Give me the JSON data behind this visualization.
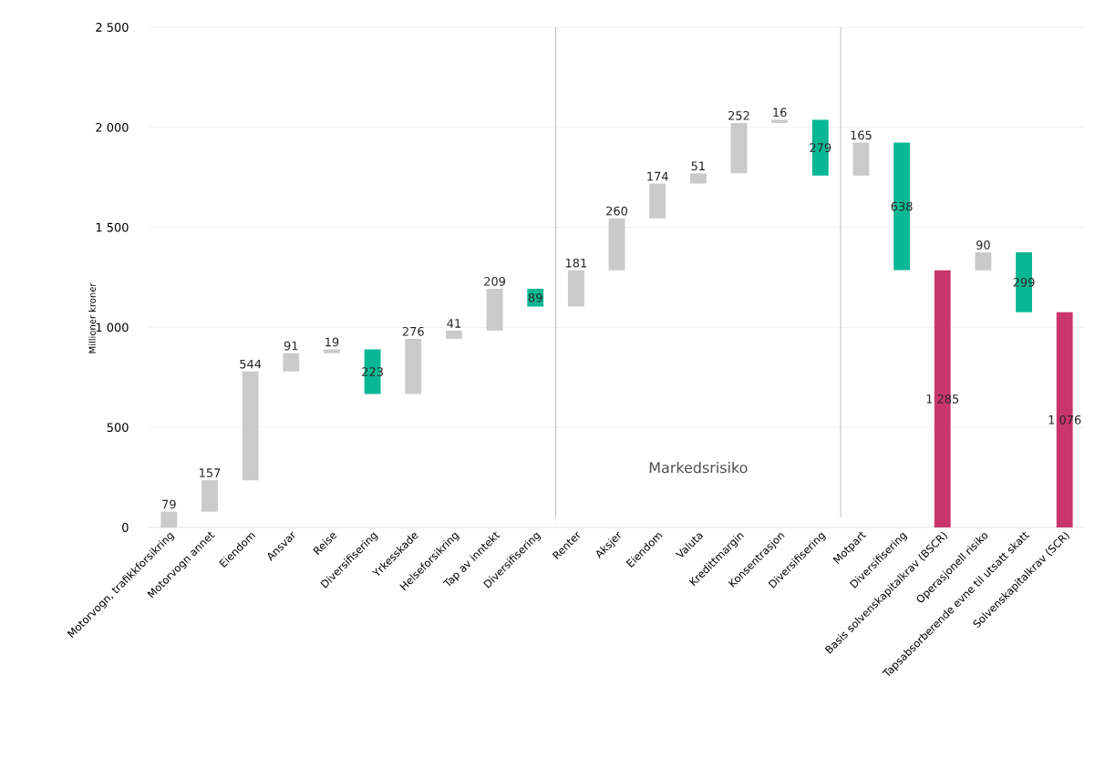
{
  "chart_data": {
    "type": "bar",
    "ylabel": "Millioner kroner",
    "categories": [
      "Motorvogn, trafikkforsikring",
      "Motorvogn annet",
      "Eiendom",
      "Ansvar",
      "Reise",
      "Diversifisering",
      "Yrkesskade",
      "Helseforsikring",
      "Tap av inntekt",
      "Diversifisering",
      "Renter",
      "Aksjer",
      "Eiendom",
      "Valuta",
      "Kredittmargin",
      "Konsentrasjon",
      "Diversifisering",
      "Motpart",
      "Diversifisering",
      "Basis solvenskapitalkrav (BSCR)",
      "Operasjonell risiko",
      "Tapsabsorberende evne til utsatt skatt",
      "Solvenskapitalkrav (SCR)"
    ],
    "values": [
      79,
      157,
      544,
      91,
      19,
      223,
      276,
      41,
      209,
      89,
      181,
      260,
      174,
      51,
      252,
      16,
      279,
      165,
      638,
      1285,
      90,
      299,
      1076
    ],
    "base": [
      0,
      79,
      236,
      780,
      871,
      667,
      667,
      943,
      984,
      1104,
      1104,
      1285,
      1545,
      1719,
      1770,
      2022,
      1759,
      1759,
      1286,
      0,
      1285,
      1076,
      0
    ],
    "colors": [
      "#c9cac9",
      "#c9cac9",
      "#c9cac9",
      "#c9cac9",
      "#c9cac9",
      "#0ab795",
      "#c9cac9",
      "#c9cac9",
      "#c9cac9",
      "#0ab795",
      "#c9cac9",
      "#c9cac9",
      "#c9cac9",
      "#c9cac9",
      "#c9cac9",
      "#c9cac9",
      "#0ab795",
      "#c9cac9",
      "#0ab795",
      "#c8366b",
      "#c9cac9",
      "#0ab795",
      "#c8366b"
    ],
    "value_labels": [
      "79",
      "157",
      "544",
      "91",
      "19",
      "223",
      "276",
      "41",
      "209",
      "89",
      "181",
      "260",
      "174",
      "51",
      "252",
      "16",
      "279",
      "165",
      "638",
      "1 285",
      "90",
      "299",
      "1 076"
    ],
    "ylim": [
      0,
      2500
    ],
    "yticks": [
      0,
      500,
      {
        "value": 1000,
        "label": "1 000"
      },
      {
        "value": 1500,
        "label": "1 500"
      },
      {
        "value": 2000,
        "label": "2 000"
      },
      {
        "value": 2500,
        "label": "2 500"
      }
    ],
    "grid": "y",
    "annotations": [
      "Markedsrisiko"
    ]
  }
}
